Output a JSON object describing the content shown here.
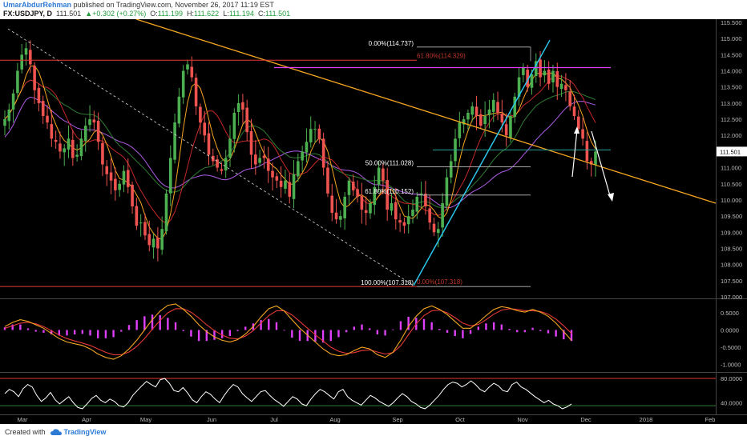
{
  "header": {
    "author": "UmarAbdurRehman",
    "published": " published on TradingView.com, November 26, 2017 11:19 EST",
    "symbol": "FX:USDJPY, D",
    "last": "111.501",
    "change": "+0.302 (+0.27%)",
    "o_label": "O:",
    "o": "111.199",
    "h_label": "H:",
    "h": "111.622",
    "l_label": "L:",
    "l": "111.194",
    "c_label": "C:",
    "c": "111.501"
  },
  "footer": {
    "created_with": "Created with",
    "brand": "TradingView"
  },
  "colors": {
    "bull": "#4caf50",
    "bear": "#ef5350",
    "trend": "#f5a623",
    "fib": "#ffffff",
    "magenta": "#e040fb",
    "red_level": "#e53935",
    "cyan": "#29c5ea",
    "ma_red": "#c62828",
    "ma_orange": "#f5a623",
    "ma_green": "#2e7d32",
    "ma_purple": "#b05ce6"
  },
  "chart_data": [
    {
      "type": "candlestick",
      "symbol": "FX:USDJPY",
      "interval": "D",
      "ylim": [
        107.0,
        115.5
      ],
      "y_ticks": [
        115.5,
        115.0,
        114.5,
        114.0,
        113.5,
        113.0,
        112.5,
        112.0,
        111.5,
        111.0,
        110.5,
        110.0,
        109.5,
        109.0,
        108.5,
        108.0,
        107.5,
        107.0
      ],
      "y_tick_labels": [
        "115.500",
        "115.000",
        "114.500",
        "114.000",
        "113.500",
        "113.000",
        "112.500",
        "112.000",
        "111.500",
        "111.000",
        "110.500",
        "110.000",
        "109.500",
        "109.000",
        "108.500",
        "108.000",
        "107.500",
        "107.000"
      ],
      "x_labels": [
        "Mar",
        "Apr",
        "May",
        "Jun",
        "Jul",
        "Aug",
        "Sep",
        "Oct",
        "Nov",
        "Dec",
        "2018",
        "Feb"
      ],
      "last_price_label": "111.501",
      "close_path": [
        112.5,
        112.8,
        113.3,
        114.0,
        114.5,
        114.7,
        114.2,
        113.4,
        113.0,
        112.6,
        112.4,
        111.9,
        111.8,
        111.5,
        111.6,
        111.9,
        111.3,
        111.4,
        111.9,
        112.3,
        112.5,
        112.4,
        111.8,
        111.1,
        110.8,
        110.6,
        110.3,
        110.5,
        110.9,
        110.4,
        109.8,
        109.2,
        109.3,
        108.9,
        108.6,
        108.8,
        108.5,
        109.1,
        110.2,
        111.3,
        112.4,
        113.2,
        114.0,
        114.2,
        113.8,
        112.9,
        112.4,
        112.0,
        111.4,
        111.2,
        111.0,
        110.9,
        111.3,
        111.9,
        112.7,
        113.0,
        112.8,
        112.1,
        111.4,
        111.1,
        111.3,
        111.3,
        110.9,
        110.7,
        110.6,
        110.4,
        110.6,
        110.1,
        110.8,
        111.2,
        111.5,
        111.8,
        112.2,
        112.2,
        111.9,
        111.0,
        110.2,
        109.6,
        109.4,
        109.5,
        110.1,
        110.6,
        110.3,
        110.1,
        109.7,
        109.6,
        109.9,
        110.4,
        111.0,
        110.6,
        109.7,
        109.9,
        109.4,
        109.3,
        109.2,
        109.5,
        109.7,
        110.1,
        110.2,
        109.8,
        109.3,
        109.0,
        109.1,
        109.9,
        110.7,
        111.2,
        111.9,
        112.4,
        112.5,
        112.7,
        112.9,
        112.6,
        112.3,
        112.6,
        112.8,
        113.1,
        112.7,
        112.4,
        112.0,
        112.6,
        113.2,
        113.8,
        114.1,
        113.5,
        113.9,
        114.3,
        113.8,
        114.0,
        113.6,
        114.0,
        113.5,
        113.6,
        113.4,
        112.9,
        112.6,
        112.2,
        111.9,
        111.2,
        111.1,
        111.5
      ],
      "annotations": {
        "fib_left": [
          {
            "level": 114.737,
            "label": "0.00%(114.737)"
          },
          {
            "level": 111.028,
            "label": "50.00%(111.028)"
          },
          {
            "level": 110.152,
            "label": "61.80%(110.152)"
          },
          {
            "level": 107.318,
            "label": "100.00%(107.318)"
          }
        ],
        "fib_red": [
          {
            "level": 114.329,
            "label": "61.80%(114.329)"
          },
          {
            "level": 107.318,
            "label": "0.00%(107.318)"
          }
        ]
      }
    },
    {
      "type": "line",
      "name_hint": "oscillator",
      "ylim": [
        -1.2,
        0.85
      ],
      "y_ticks": [
        0.5,
        0.0,
        -0.5,
        -1.0
      ],
      "y_tick_labels": [
        "0.5000",
        "0.0000",
        "-0.5000",
        "-1.0000"
      ],
      "fast": [
        0.1,
        0.22,
        0.3,
        0.25,
        0.15,
        0.05,
        -0.1,
        -0.25,
        -0.35,
        -0.4,
        -0.45,
        -0.55,
        -0.7,
        -0.8,
        -0.85,
        -0.75,
        -0.55,
        -0.3,
        0.0,
        0.3,
        0.55,
        0.72,
        0.76,
        0.6,
        0.4,
        0.15,
        -0.05,
        -0.2,
        -0.3,
        -0.35,
        -0.28,
        -0.12,
        0.1,
        0.38,
        0.62,
        0.7,
        0.55,
        0.3,
        0.05,
        -0.15,
        -0.35,
        -0.55,
        -0.7,
        -0.75,
        -0.72,
        -0.6,
        -0.5,
        -0.55,
        -0.72,
        -0.8,
        -0.65,
        -0.3,
        0.1,
        0.4,
        0.62,
        0.7,
        0.6,
        0.45,
        0.25,
        0.05,
        0.05,
        0.22,
        0.42,
        0.6,
        0.68,
        0.64,
        0.56,
        0.52,
        0.6,
        0.52,
        0.4,
        0.2,
        -0.05,
        -0.3
      ],
      "slow": [
        0.05,
        0.12,
        0.2,
        0.22,
        0.18,
        0.1,
        -0.02,
        -0.15,
        -0.25,
        -0.32,
        -0.38,
        -0.45,
        -0.55,
        -0.65,
        -0.72,
        -0.72,
        -0.64,
        -0.48,
        -0.25,
        0.02,
        0.28,
        0.5,
        0.62,
        0.62,
        0.52,
        0.35,
        0.15,
        -0.02,
        -0.15,
        -0.24,
        -0.26,
        -0.18,
        -0.02,
        0.2,
        0.42,
        0.56,
        0.56,
        0.44,
        0.25,
        0.05,
        -0.14,
        -0.32,
        -0.5,
        -0.62,
        -0.68,
        -0.66,
        -0.6,
        -0.58,
        -0.64,
        -0.7,
        -0.66,
        -0.46,
        -0.14,
        0.18,
        0.42,
        0.56,
        0.58,
        0.5,
        0.36,
        0.2,
        0.12,
        0.16,
        0.3,
        0.46,
        0.58,
        0.62,
        0.6,
        0.56,
        0.56,
        0.54,
        0.46,
        0.32,
        0.12,
        -0.1
      ]
    },
    {
      "type": "line",
      "name_hint": "rsi",
      "ylim": [
        22,
        88
      ],
      "y_ticks": [
        80,
        40
      ],
      "y_tick_labels": [
        "80.0000",
        "40.0000"
      ],
      "bands": [
        80,
        35
      ],
      "values": [
        55,
        62,
        58,
        50,
        63,
        70,
        66,
        52,
        42,
        48,
        57,
        45,
        38,
        44,
        50,
        40,
        32,
        30,
        38,
        47,
        52,
        44,
        40,
        46,
        42,
        35,
        33,
        40,
        52,
        60,
        68,
        75,
        70,
        66,
        78,
        80,
        72,
        60,
        58,
        65,
        56,
        45,
        40,
        50,
        58,
        54,
        46,
        40,
        52,
        62,
        70,
        66,
        55,
        48,
        42,
        50,
        58,
        60,
        52,
        45,
        40,
        34,
        42,
        50,
        46,
        38,
        35,
        46,
        55,
        62,
        58,
        52,
        46,
        58,
        62,
        50,
        44,
        40,
        36,
        44,
        52,
        48,
        42,
        38,
        34,
        40,
        48,
        55,
        50,
        42,
        38,
        32,
        30,
        36,
        44,
        52,
        62,
        70,
        74,
        72,
        66,
        70,
        76,
        70,
        62,
        58,
        66,
        72,
        68,
        60,
        58,
        70,
        74,
        66,
        62,
        56,
        50,
        45,
        40,
        44,
        38,
        35,
        30,
        33,
        38
      ]
    }
  ]
}
